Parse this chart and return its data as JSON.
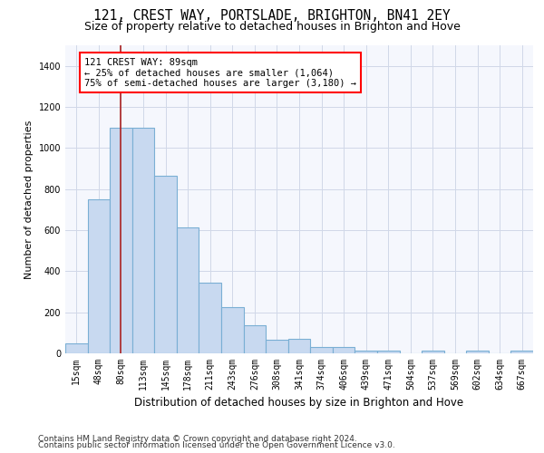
{
  "title": "121, CREST WAY, PORTSLADE, BRIGHTON, BN41 2EY",
  "subtitle": "Size of property relative to detached houses in Brighton and Hove",
  "xlabel": "Distribution of detached houses by size in Brighton and Hove",
  "ylabel": "Number of detached properties",
  "categories": [
    "15sqm",
    "48sqm",
    "80sqm",
    "113sqm",
    "145sqm",
    "178sqm",
    "211sqm",
    "243sqm",
    "276sqm",
    "308sqm",
    "341sqm",
    "374sqm",
    "406sqm",
    "439sqm",
    "471sqm",
    "504sqm",
    "537sqm",
    "569sqm",
    "602sqm",
    "634sqm",
    "667sqm"
  ],
  "bar_heights": [
    50,
    750,
    1100,
    1100,
    865,
    615,
    345,
    225,
    135,
    65,
    70,
    30,
    30,
    15,
    15,
    0,
    15,
    0,
    15,
    0,
    15
  ],
  "bar_color": "#c8d9f0",
  "bar_edge_color": "#7aafd4",
  "vline_index": 2,
  "vline_color": "#aa2222",
  "annotation_text": "121 CREST WAY: 89sqm\n← 25% of detached houses are smaller (1,064)\n75% of semi-detached houses are larger (3,180) →",
  "ylim": [
    0,
    1500
  ],
  "yticks": [
    0,
    200,
    400,
    600,
    800,
    1000,
    1200,
    1400
  ],
  "footer1": "Contains HM Land Registry data © Crown copyright and database right 2024.",
  "footer2": "Contains public sector information licensed under the Open Government Licence v3.0.",
  "bg_color": "#ffffff",
  "plot_bg_color": "#f5f7fd",
  "grid_color": "#d0d8e8",
  "title_fontsize": 10.5,
  "subtitle_fontsize": 9,
  "xlabel_fontsize": 8.5,
  "ylabel_fontsize": 8,
  "tick_fontsize": 7,
  "footer_fontsize": 6.5
}
